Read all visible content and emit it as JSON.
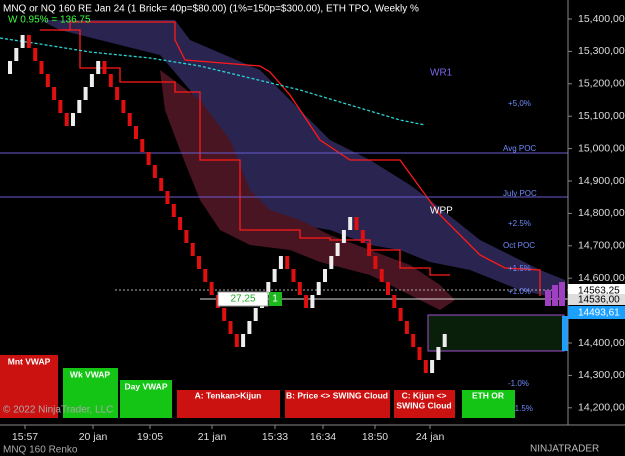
{
  "header": {
    "title": "MNQ or NQ 160 RE Jan 24 (1 Brick= 40p=$80.00) (1%=150p=$300.00), ETH TPO, Weekly %",
    "subtitle": "W 0.95% = 136.75"
  },
  "annotations": {
    "wr1": "WR1",
    "wpp": "WPP",
    "plus5": "+5,0%",
    "avg_poc": "Avg POC",
    "july_poc": "July POC",
    "plus2_5": "+2.5%",
    "oct_poc": "Oct POC",
    "plus1_5": "+1.5%",
    "plus1_0": "+1.0%",
    "minus1_0": "-1.0%",
    "minus1_5": "-1.5%"
  },
  "order": {
    "quantity": "27,25",
    "position": "1"
  },
  "buttons": [
    "Mnt VWAP",
    "Wk VWAP",
    "Day VWAP",
    "A: Tenkan>Kijun",
    "B: Price <> SWING Cloud",
    "C: Kijun <>",
    "SWING Cloud",
    "ETH OR"
  ],
  "price_axis": {
    "labels": [
      "15,400,00",
      "15,300,00",
      "15,200,00",
      "15,100,00",
      "15,000,00",
      "14,900,00",
      "14,800,00",
      "14,700,00",
      "14,600,00",
      "14,500,00",
      "14,400,00",
      "14,300,00",
      "14,200,00"
    ],
    "markers": [
      "14563,25",
      "14536,00",
      "14493,61"
    ]
  },
  "time_axis": {
    "labels": [
      "15:57",
      "20 jan",
      "19:05",
      "21 jan",
      "15:33",
      "16:34",
      "18:50",
      "24 jan"
    ]
  },
  "footer": {
    "copyright": "© 2022 NinjaTrader, LLC",
    "instrument": "MNQ 160 Renko",
    "brand": "NINJATRADER"
  }
}
